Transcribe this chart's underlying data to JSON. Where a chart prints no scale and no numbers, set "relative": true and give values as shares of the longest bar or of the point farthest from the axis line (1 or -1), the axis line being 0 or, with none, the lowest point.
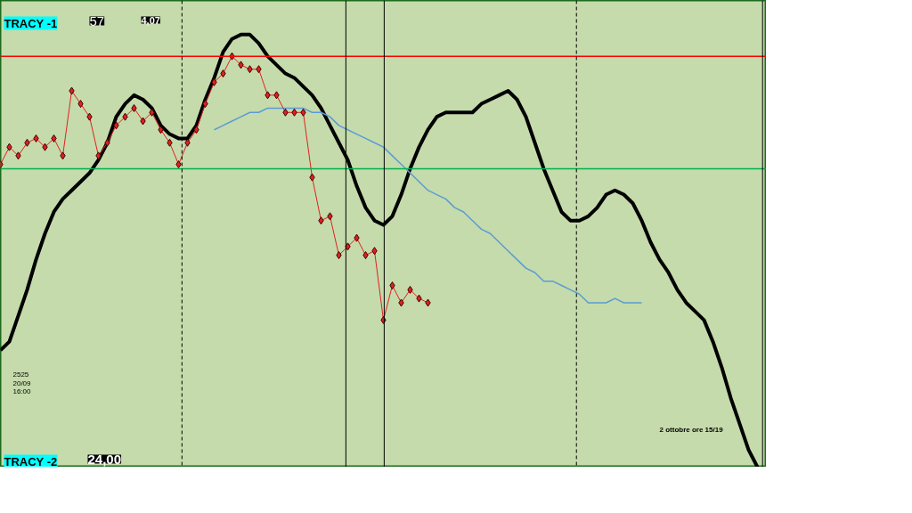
{
  "chart_data": {
    "type": "line",
    "relative": true,
    "categories": [
      null,
      null,
      null,
      null,
      null,
      null,
      null,
      null,
      null,
      null,
      null,
      null,
      null,
      null,
      null,
      null,
      null,
      null,
      null,
      null,
      null,
      null,
      null,
      null,
      null,
      null,
      null,
      null,
      null,
      null,
      null,
      null,
      null,
      null,
      null,
      null,
      null,
      null,
      null,
      null,
      null,
      null,
      null,
      null,
      null,
      null,
      null,
      null,
      null,
      null,
      null,
      null,
      null,
      null,
      null,
      null,
      null,
      null,
      null,
      null,
      null,
      null,
      null,
      null,
      null,
      null,
      null,
      null,
      null,
      null,
      null,
      null,
      null,
      null,
      null,
      null,
      null,
      null,
      null,
      null,
      null,
      null,
      null,
      null,
      null,
      null
    ],
    "series": [
      {
        "color": "#000000",
        "marker": "none",
        "values": [
          0.27,
          0.29,
          0.35,
          0.41,
          0.48,
          0.54,
          0.59,
          0.62,
          0.64,
          0.66,
          0.68,
          0.71,
          0.75,
          0.81,
          0.84,
          0.86,
          0.85,
          0.83,
          0.79,
          0.77,
          0.76,
          0.76,
          0.79,
          0.85,
          0.9,
          0.96,
          0.99,
          1.0,
          1.0,
          0.98,
          0.95,
          0.93,
          0.91,
          0.9,
          0.88,
          0.86,
          0.83,
          0.79,
          0.75,
          0.71,
          0.65,
          0.6,
          0.57,
          0.56,
          0.58,
          0.63,
          0.69,
          0.74,
          0.78,
          0.81,
          0.82,
          0.82,
          0.82,
          0.82,
          0.84,
          0.85,
          0.86,
          0.87,
          0.85,
          0.81,
          0.75,
          0.69,
          0.64,
          0.59,
          0.57,
          0.57,
          0.58,
          0.6,
          0.63,
          0.64,
          0.63,
          0.61,
          0.57,
          0.52,
          0.48,
          0.45,
          0.41,
          0.38,
          0.36,
          0.34,
          0.29,
          0.23,
          0.16,
          0.1,
          0.04,
          0.0
        ]
      },
      {
        "color": "#5b9bd5",
        "marker": "none",
        "values": [
          null,
          null,
          null,
          null,
          null,
          null,
          null,
          null,
          null,
          null,
          null,
          null,
          null,
          null,
          null,
          null,
          null,
          null,
          null,
          null,
          null,
          null,
          null,
          null,
          0.78,
          0.79,
          0.8,
          0.81,
          0.82,
          0.82,
          0.83,
          0.83,
          0.83,
          0.83,
          0.83,
          0.82,
          0.82,
          0.81,
          0.79,
          0.78,
          0.77,
          0.76,
          0.75,
          0.74,
          0.72,
          0.7,
          0.68,
          0.66,
          0.64,
          0.63,
          0.62,
          0.6,
          0.59,
          0.57,
          0.55,
          0.54,
          0.52,
          0.5,
          0.48,
          0.46,
          0.45,
          0.43,
          0.43,
          0.42,
          0.41,
          0.4,
          0.38,
          0.38,
          0.38,
          0.39,
          0.38,
          0.38,
          0.38,
          null,
          null,
          null,
          null,
          null,
          null,
          null,
          null,
          null,
          null,
          null,
          null,
          null
        ]
      },
      {
        "color": "#e02020",
        "marker": "diamond",
        "values": [
          0.7,
          0.74,
          0.72,
          0.75,
          0.76,
          0.74,
          0.76,
          0.72,
          0.87,
          0.84,
          0.81,
          0.72,
          0.75,
          0.79,
          0.81,
          0.83,
          0.8,
          0.82,
          0.78,
          0.75,
          0.7,
          0.75,
          0.78,
          0.84,
          0.89,
          0.91,
          0.95,
          0.93,
          0.92,
          0.92,
          0.86,
          0.86,
          0.82,
          0.82,
          0.82,
          0.67,
          0.57,
          0.58,
          0.49,
          0.51,
          0.53,
          0.49,
          0.5,
          0.34,
          0.42,
          0.38,
          0.41,
          0.39,
          0.38,
          null,
          null,
          null,
          null,
          null,
          null,
          null,
          null,
          null,
          null,
          null,
          null,
          null,
          null,
          null,
          null,
          null,
          null,
          null,
          null,
          null,
          null,
          null,
          null,
          null,
          null,
          null,
          null,
          null,
          null,
          null,
          null,
          null,
          null,
          null,
          null,
          null
        ]
      }
    ],
    "ref_lines": [
      {
        "axis": "y",
        "value": 0.95,
        "color": "#ff0000",
        "line_style": "solid"
      },
      {
        "axis": "y",
        "value": 0.69,
        "color": "#00b050",
        "line_style": "solid"
      }
    ],
    "annotations": [
      "TRACY -1",
      "57",
      "4,07",
      "TRACY -2",
      "24,00",
      "2525\n20/09\n16:00",
      "2 ottobre ore 15/19"
    ],
    "grid": false
  }
}
